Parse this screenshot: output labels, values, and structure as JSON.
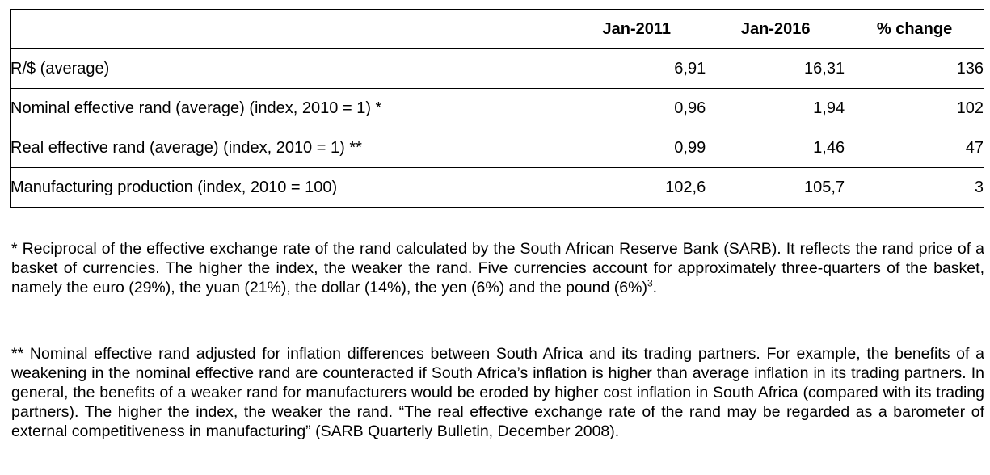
{
  "table": {
    "headers": [
      "",
      "Jan-2011",
      "Jan-2016",
      "% change"
    ],
    "rows": [
      {
        "label": "R/$ (average)",
        "jan2011": "6,91",
        "jan2016": "16,31",
        "change": "136"
      },
      {
        "label": "Nominal effective rand (average) (index, 2010 = 1) *",
        "jan2011": "0,96",
        "jan2016": "1,94",
        "change": "102"
      },
      {
        "label": "Real effective rand (average) (index, 2010 = 1) **",
        "jan2011": "0,99",
        "jan2016": "1,46",
        "change": "47"
      },
      {
        "label": "Manufacturing production (index, 2010 = 100)",
        "jan2011": "102,6",
        "jan2016": "105,7",
        "change": "3"
      }
    ]
  },
  "notes": {
    "note1_text": "* Reciprocal of the effective exchange rate of the rand calculated by the South African Reserve Bank (SARB). It reflects the rand price of a basket of currencies. The higher the index, the weaker the rand. Five currencies account for approximately three-quarters of the basket, namely the euro (29%), the yuan (21%), the dollar (14%), the yen (6%) and the pound (6%)",
    "note1_ref": "3",
    "note1_end": ".",
    "note2_text": "** Nominal effective rand adjusted for inflation differences between South Africa and its trading partners. For example, the benefits of a weakening in the nominal effective rand are counteracted if South Africa’s inflation is higher than average inflation in its trading partners. In general, the benefits of a weaker rand for manufacturers would be eroded by higher cost inflation in South Africa (compared with its trading partners). The higher the index, the weaker the rand. “The real effective exchange rate of the rand may be regarded as a barometer of external competitiveness in manufacturing” (SARB Quarterly Bulletin, December 2008)."
  }
}
